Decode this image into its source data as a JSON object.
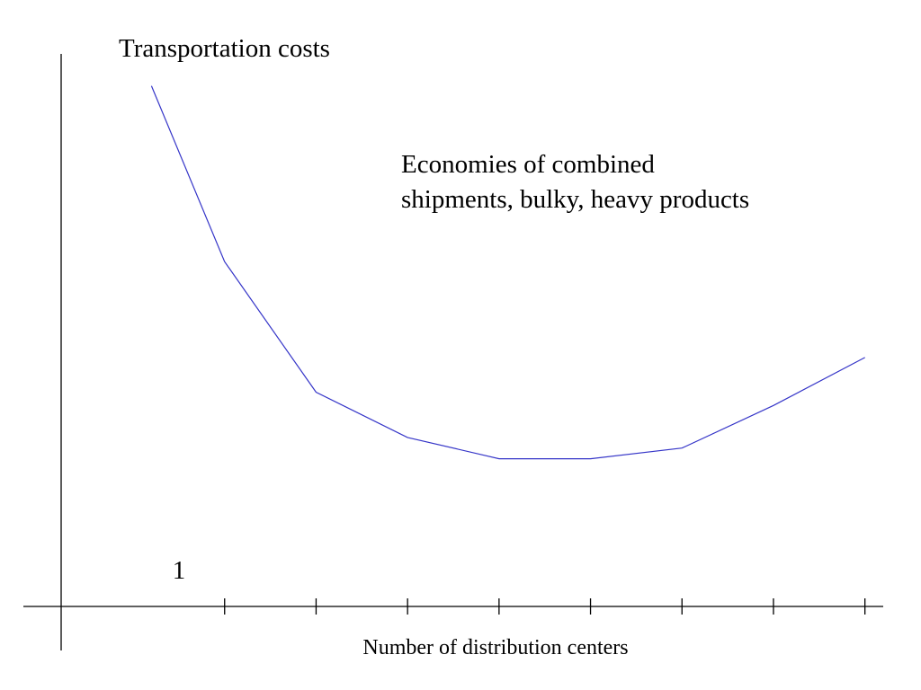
{
  "chart_data": {
    "type": "line",
    "title": "Transportation costs",
    "xlabel": "Number of distribution centers",
    "ylabel": "",
    "annotation": [
      "Economies of combined",
      "shipments, bulky, heavy products"
    ],
    "x_tick_labels": [
      "1"
    ],
    "x_ticks": [
      1,
      2,
      3,
      4,
      5,
      6,
      7,
      8
    ],
    "grid": false,
    "legend": "none",
    "series": [
      {
        "color": "#3535c8",
        "x": [
          0.2,
          1,
          2,
          3,
          4,
          5,
          6,
          7,
          8
        ],
        "y": [
          100,
          67,
          42.5,
          34,
          30,
          30,
          32,
          40,
          49
        ]
      }
    ],
    "xlim": [
      -1.2,
      8.2
    ],
    "ylim": [
      -6,
      106
    ]
  }
}
